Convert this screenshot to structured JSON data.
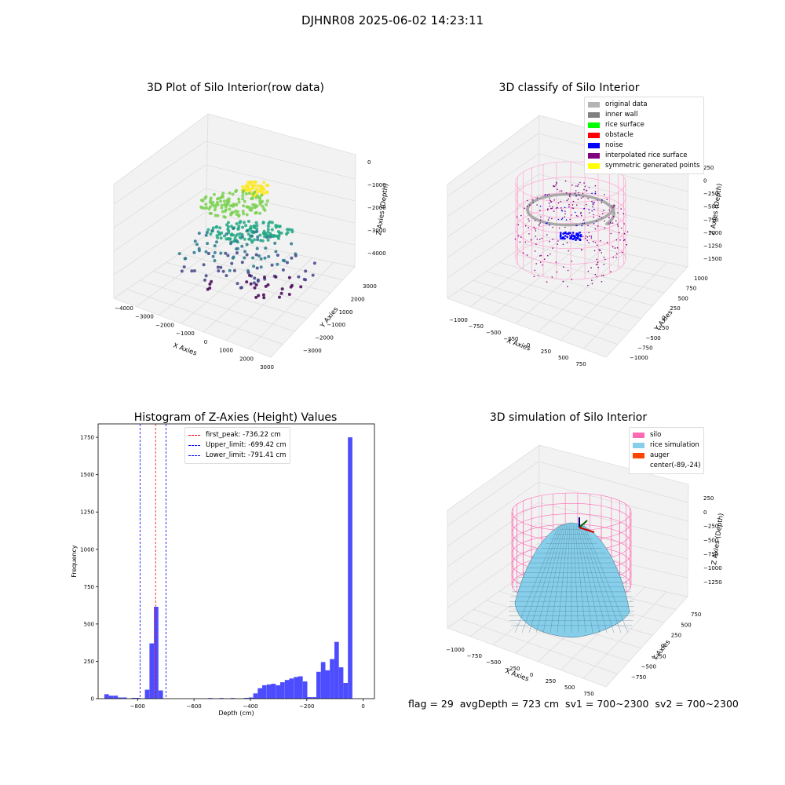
{
  "suptitle": "DJHNR08 2025-06-02 14:23:11",
  "status_text": "flag = 29  avgDepth = 723 cm  sv1 = 700~2300  sv2 = 700~2300",
  "chart_data": [
    {
      "type": "scatter",
      "title": "3D Plot of Silo Interior(row data)",
      "xlabel": "X Axies",
      "ylabel": "Y Axies",
      "zlabel": "Z Axies (Depth)",
      "x_ticks": [
        "−4000",
        "−3000",
        "−2000",
        "−1000",
        "0",
        "1000",
        "2000",
        "3000"
      ],
      "y_ticks": [
        "3000",
        "2000",
        "1000",
        "−1000",
        "−2000",
        "−3000"
      ],
      "z_ticks": [
        "0",
        "−1000",
        "−2000",
        "−3000",
        "−4000"
      ],
      "xlim": [
        -4000,
        3000
      ],
      "ylim": [
        -3000,
        3000
      ],
      "zlim": [
        -4500,
        0
      ],
      "colormap": [
        "#fde725",
        "#7ad151",
        "#22a884",
        "#2a788e",
        "#414487",
        "#440154"
      ]
    },
    {
      "type": "scatter",
      "title": "3D classify of Silo Interior",
      "xlabel": "X Axies",
      "ylabel": "Y Axies",
      "zlabel": "Z Axies (Depth)",
      "x_ticks": [
        "−1000",
        "−750",
        "−500",
        "−250",
        "0",
        "250",
        "500",
        "750"
      ],
      "y_ticks": [
        "1000",
        "750",
        "500",
        "250",
        "0",
        "−250",
        "−500",
        "−750",
        "−1000"
      ],
      "z_ticks": [
        "250",
        "0",
        "−250",
        "−500",
        "−750",
        "−1000",
        "−1250",
        "−1500"
      ],
      "legend": [
        {
          "label": "original data",
          "color": "#b4b4b4"
        },
        {
          "label": "inner wall",
          "color": "#808080"
        },
        {
          "label": "rice surface",
          "color": "#00ff00"
        },
        {
          "label": "obstacle",
          "color": "#ff0000"
        },
        {
          "label": "noise",
          "color": "#0000ff"
        },
        {
          "label": "interpolated rice surface",
          "color": "#800080"
        },
        {
          "label": "symmetric generated points",
          "color": "#ffff00"
        }
      ],
      "colors": {
        "wire": "#ff9ccd"
      }
    },
    {
      "type": "bar",
      "title": "Histogram of Z-Axies (Height) Values",
      "xlabel": "Depth (cm)",
      "ylabel": "Frequency",
      "xlim": [
        -940,
        40
      ],
      "ylim": [
        0,
        1840
      ],
      "x_ticks": [
        -800,
        -600,
        -400,
        -200,
        0
      ],
      "y_ticks": [
        0,
        250,
        500,
        750,
        1000,
        1250,
        1500,
        1750
      ],
      "bin_width": 16,
      "bins": [
        {
          "x": -918,
          "v": 30
        },
        {
          "x": -902,
          "v": 20
        },
        {
          "x": -886,
          "v": 20
        },
        {
          "x": -870,
          "v": 8
        },
        {
          "x": -854,
          "v": 8
        },
        {
          "x": -822,
          "v": 5
        },
        {
          "x": -806,
          "v": 5
        },
        {
          "x": -774,
          "v": 60
        },
        {
          "x": -758,
          "v": 370
        },
        {
          "x": -742,
          "v": 615
        },
        {
          "x": -726,
          "v": 55
        },
        {
          "x": -550,
          "v": 4
        },
        {
          "x": -510,
          "v": 4
        },
        {
          "x": -470,
          "v": 4
        },
        {
          "x": -422,
          "v": 5
        },
        {
          "x": -406,
          "v": 8
        },
        {
          "x": -390,
          "v": 35
        },
        {
          "x": -374,
          "v": 70
        },
        {
          "x": -358,
          "v": 90
        },
        {
          "x": -342,
          "v": 95
        },
        {
          "x": -326,
          "v": 100
        },
        {
          "x": -310,
          "v": 90
        },
        {
          "x": -294,
          "v": 110
        },
        {
          "x": -278,
          "v": 125
        },
        {
          "x": -262,
          "v": 135
        },
        {
          "x": -246,
          "v": 145
        },
        {
          "x": -230,
          "v": 150
        },
        {
          "x": -214,
          "v": 115
        },
        {
          "x": -198,
          "v": 10
        },
        {
          "x": -182,
          "v": 10
        },
        {
          "x": -166,
          "v": 180
        },
        {
          "x": -150,
          "v": 245
        },
        {
          "x": -134,
          "v": 190
        },
        {
          "x": -118,
          "v": 265
        },
        {
          "x": -102,
          "v": 380
        },
        {
          "x": -86,
          "v": 210
        },
        {
          "x": -70,
          "v": 105
        },
        {
          "x": -54,
          "v": 1750
        }
      ],
      "bar_color": "#4d4dff",
      "vlines": [
        {
          "x": -736.22,
          "color": "#ff0000",
          "label": "first_peak: -736.22 cm"
        },
        {
          "x": -699.42,
          "color": "#0000ff",
          "label": "Upper_limit: -699.42 cm"
        },
        {
          "x": -791.41,
          "color": "#0000ff",
          "label": "Lower_limit: -791.41 cm"
        }
      ]
    },
    {
      "type": "surface",
      "title": "3D simulation of Silo Interior",
      "xlabel": "X Axies",
      "ylabel": "Y Axies",
      "zlabel": "Z Axies (Depth)",
      "x_ticks": [
        "−1000",
        "−750",
        "−500",
        "−250",
        "0",
        "250",
        "500",
        "750"
      ],
      "y_ticks": [
        "750",
        "500",
        "250",
        "0",
        "−250",
        "−500",
        "−750"
      ],
      "z_ticks": [
        "250",
        "0",
        "−250",
        "−500",
        "−750",
        "−1000",
        "−1250"
      ],
      "legend": [
        {
          "label": "silo",
          "color": "#ff69b4"
        },
        {
          "label": "rice simulation",
          "color": "#87ceeb"
        },
        {
          "label": "auger",
          "color": "#ff4500"
        },
        {
          "label": "center(-89,-24)",
          "color": "#ffffff"
        }
      ]
    }
  ]
}
